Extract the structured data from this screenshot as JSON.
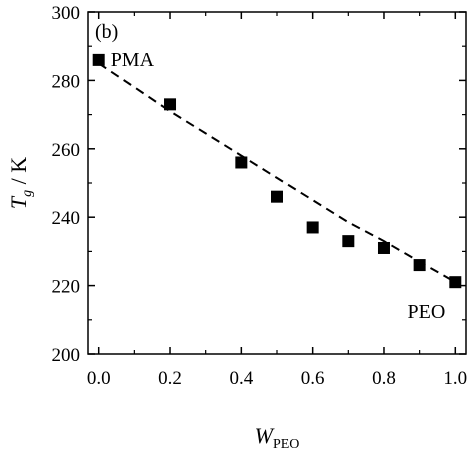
{
  "chart_data": {
    "type": "scatter",
    "panel_label": "(b)",
    "x": [
      0.0,
      0.2,
      0.4,
      0.5,
      0.6,
      0.7,
      0.8,
      0.9,
      1.0
    ],
    "series": [
      {
        "values": [
          286,
          273,
          256,
          246,
          237,
          233,
          231,
          226,
          221
        ],
        "marker": "square",
        "color": "#000000"
      }
    ],
    "fit_line": {
      "style": "dashed",
      "color": "#000000",
      "x": [
        0.0,
        0.1,
        0.2,
        0.3,
        0.4,
        0.5,
        0.6,
        0.7,
        0.8,
        0.9,
        1.0
      ],
      "y": [
        285,
        278,
        271,
        264.5,
        258,
        251.5,
        245,
        238.5,
        233,
        227,
        221
      ]
    },
    "xlabel_main": "W",
    "xlabel_sub": "PEO",
    "ylabel_main": "T",
    "ylabel_sub": "g",
    "ylabel_unit": " / K",
    "xlim": [
      -0.03,
      1.03
    ],
    "ylim": [
      200,
      300
    ],
    "xticks": [
      0.0,
      0.2,
      0.4,
      0.6,
      0.8,
      1.0
    ],
    "xtick_labels": [
      "0.0",
      "0.2",
      "0.4",
      "0.6",
      "0.8",
      "1.0"
    ],
    "yticks": [
      200,
      220,
      240,
      260,
      280,
      300
    ],
    "ytick_labels": [
      "200",
      "220",
      "240",
      "260",
      "280",
      "300"
    ],
    "annotations": [
      {
        "text": "PMA",
        "x": 0.0,
        "y": 286
      },
      {
        "text": "PEO",
        "x": 1.0,
        "y": 221
      }
    ],
    "grid": false,
    "legend": "none"
  }
}
